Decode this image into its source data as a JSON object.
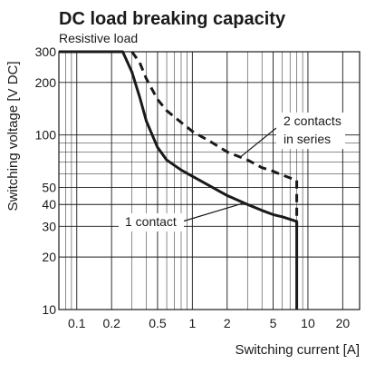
{
  "chart_data": {
    "type": "line",
    "title": "DC load breaking capacity",
    "subtitle": "Resistive load",
    "xlabel": "Switching current [A]",
    "ylabel": "Switching voltage [V DC]",
    "xscale": "log",
    "yscale": "log",
    "xlim": [
      0.07,
      28
    ],
    "ylim": [
      10,
      300
    ],
    "grid": true,
    "x_ticks": [
      {
        "value": 0.1,
        "label": "0.1"
      },
      {
        "value": 0.2,
        "label": "0.2"
      },
      {
        "value": 0.5,
        "label": "0.5"
      },
      {
        "value": 1,
        "label": "1"
      },
      {
        "value": 2,
        "label": "2"
      },
      {
        "value": 5,
        "label": "5"
      },
      {
        "value": 10,
        "label": "10"
      },
      {
        "value": 20,
        "label": "20"
      }
    ],
    "y_ticks": [
      {
        "value": 10,
        "label": "10"
      },
      {
        "value": 20,
        "label": "20"
      },
      {
        "value": 30,
        "label": "30"
      },
      {
        "value": 40,
        "label": "40"
      },
      {
        "value": 50,
        "label": "50"
      },
      {
        "value": 100,
        "label": "100"
      },
      {
        "value": 200,
        "label": "200"
      },
      {
        "value": 300,
        "label": "300"
      }
    ],
    "series": [
      {
        "name": "1 contact",
        "style": "solid",
        "color": "#1a1a1a",
        "x": [
          0.07,
          0.25,
          0.3,
          0.35,
          0.4,
          0.5,
          0.6,
          0.8,
          1.0,
          1.5,
          2.0,
          3.0,
          4.0,
          5.0,
          6.0,
          8.0,
          8.0
        ],
        "y": [
          300,
          300,
          230,
          165,
          120,
          85,
          72,
          63,
          58,
          50,
          45,
          40,
          37,
          35,
          34,
          32,
          10
        ]
      },
      {
        "name": "2 contacts in series",
        "style": "dashed",
        "color": "#1a1a1a",
        "x": [
          0.3,
          0.35,
          0.4,
          0.5,
          0.6,
          0.8,
          1.0,
          1.5,
          2.0,
          3.0,
          4.0,
          5.0,
          6.0,
          8.0,
          8.0
        ],
        "y": [
          300,
          260,
          210,
          160,
          138,
          118,
          105,
          90,
          80,
          72,
          65,
          62,
          59,
          55,
          30
        ]
      }
    ],
    "annotations": [
      {
        "text": "2 contacts",
        "series": "2 contacts in series"
      },
      {
        "text": "in series",
        "series": "2 contacts in series"
      },
      {
        "text": "1 contact",
        "series": "1 contact"
      }
    ]
  }
}
